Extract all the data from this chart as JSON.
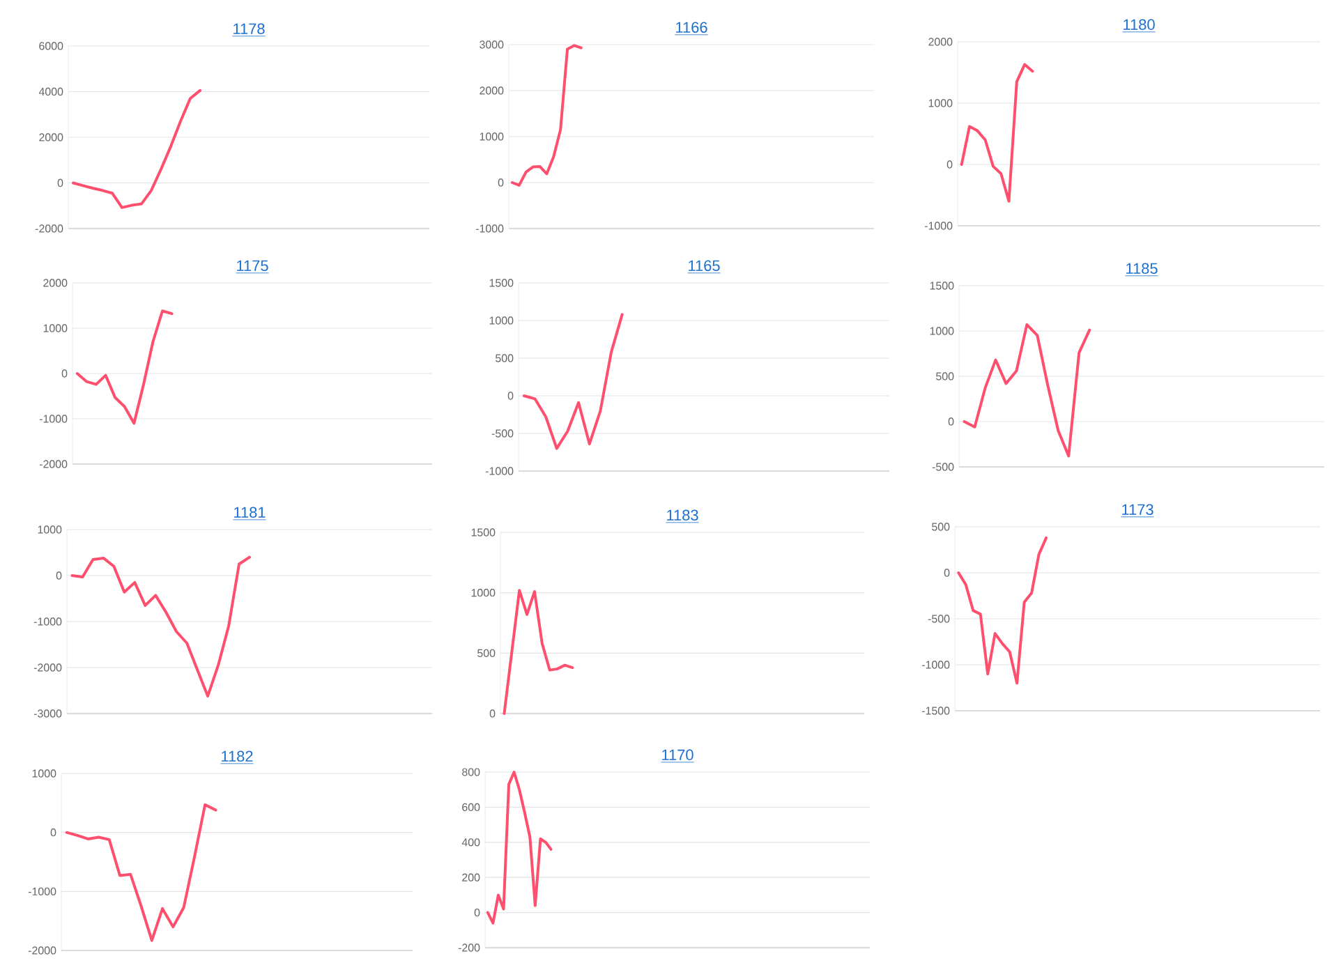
{
  "chart_data": [
    {
      "type": "line",
      "title": "1178",
      "color": "#ff4f6e",
      "grid": "y",
      "tick_labels": "y",
      "ylim": [
        -2000,
        6000
      ],
      "yticks": [
        -2000,
        0,
        2000,
        4000,
        6000
      ],
      "categories": [
        null,
        null,
        null,
        null,
        null,
        null,
        null,
        null,
        null,
        null,
        null,
        null,
        null,
        null,
        null,
        null,
        null,
        null,
        null,
        null,
        null,
        null,
        null,
        null,
        null,
        null,
        null,
        null,
        null,
        null,
        null,
        null,
        null,
        null,
        null,
        null,
        null
      ],
      "values": [
        0,
        -120,
        -230,
        -330,
        -450,
        -1080,
        -980,
        -920,
        -330,
        600,
        1600,
        2700,
        3700,
        4050,
        null,
        null,
        null,
        null,
        null,
        null,
        null,
        null,
        null,
        null,
        null,
        null,
        null,
        null,
        null,
        null,
        null,
        null,
        null,
        null,
        null,
        null,
        null
      ]
    },
    {
      "type": "line",
      "title": "1166",
      "color": "#ff4f6e",
      "grid": "y",
      "tick_labels": "y",
      "ylim": [
        -1000,
        3000
      ],
      "yticks": [
        -1000,
        0,
        1000,
        2000,
        3000
      ],
      "categories": [
        null,
        null,
        null,
        null,
        null,
        null,
        null,
        null,
        null,
        null,
        null,
        null,
        null,
        null,
        null,
        null,
        null,
        null,
        null,
        null,
        null,
        null,
        null,
        null,
        null,
        null,
        null,
        null,
        null,
        null,
        null,
        null,
        null,
        null,
        null,
        null,
        null,
        null,
        null,
        null,
        null,
        null,
        null,
        null,
        null,
        null,
        null,
        null,
        null,
        null,
        null,
        null,
        null
      ],
      "values": [
        0,
        -60,
        230,
        340,
        350,
        190,
        560,
        1150,
        2900,
        2980,
        2930,
        null,
        null,
        null,
        null,
        null,
        null,
        null,
        null,
        null,
        null,
        null,
        null,
        null,
        null,
        null,
        null,
        null,
        null,
        null,
        null,
        null,
        null,
        null,
        null,
        null,
        null,
        null,
        null,
        null,
        null,
        null,
        null,
        null,
        null,
        null,
        null,
        null,
        null,
        null,
        null,
        null,
        null
      ]
    },
    {
      "type": "line",
      "title": "1180",
      "color": "#ff4f6e",
      "grid": "y",
      "tick_labels": "y",
      "ylim": [
        -1000,
        2000
      ],
      "yticks": [
        -1000,
        0,
        1000,
        2000
      ],
      "categories": [
        null,
        null,
        null,
        null,
        null,
        null,
        null,
        null,
        null,
        null,
        null,
        null,
        null,
        null,
        null,
        null,
        null,
        null,
        null,
        null,
        null,
        null,
        null,
        null,
        null,
        null,
        null,
        null,
        null,
        null,
        null,
        null,
        null,
        null,
        null,
        null,
        null,
        null,
        null,
        null,
        null,
        null,
        null,
        null,
        null,
        null
      ],
      "values": [
        0,
        620,
        550,
        400,
        -30,
        -150,
        -600,
        1350,
        1630,
        1520,
        null,
        null,
        null,
        null,
        null,
        null,
        null,
        null,
        null,
        null,
        null,
        null,
        null,
        null,
        null,
        null,
        null,
        null,
        null,
        null,
        null,
        null,
        null,
        null,
        null,
        null,
        null,
        null,
        null,
        null,
        null,
        null,
        null,
        null,
        null,
        null
      ]
    },
    {
      "type": "line",
      "title": "1175",
      "color": "#ff4f6e",
      "grid": "y",
      "tick_labels": "y",
      "ylim": [
        -2000,
        2000
      ],
      "yticks": [
        -2000,
        -1000,
        0,
        1000,
        2000
      ],
      "categories": [
        null,
        null,
        null,
        null,
        null,
        null,
        null,
        null,
        null,
        null,
        null,
        null,
        null,
        null,
        null,
        null,
        null,
        null,
        null,
        null,
        null,
        null,
        null,
        null,
        null,
        null,
        null,
        null,
        null,
        null,
        null,
        null,
        null,
        null,
        null,
        null,
        null,
        null
      ],
      "values": [
        0,
        -180,
        -240,
        -40,
        -530,
        -730,
        -1100,
        -250,
        700,
        1380,
        1320,
        null,
        null,
        null,
        null,
        null,
        null,
        null,
        null,
        null,
        null,
        null,
        null,
        null,
        null,
        null,
        null,
        null,
        null,
        null,
        null,
        null,
        null,
        null,
        null,
        null,
        null,
        null
      ]
    },
    {
      "type": "line",
      "title": "1165",
      "color": "#ff4f6e",
      "grid": "y",
      "tick_labels": "y",
      "ylim": [
        -1000,
        1500
      ],
      "yticks": [
        -1000,
        -500,
        0,
        500,
        1000,
        1500
      ],
      "categories": [
        null,
        null,
        null,
        null,
        null,
        null,
        null,
        null,
        null,
        null,
        null,
        null,
        null,
        null,
        null,
        null,
        null,
        null,
        null,
        null,
        null,
        null,
        null,
        null,
        null,
        null,
        null,
        null,
        null,
        null,
        null,
        null,
        null,
        null
      ],
      "values": [
        0,
        -40,
        -280,
        -700,
        -470,
        -90,
        -640,
        -200,
        580,
        1080,
        null,
        null,
        null,
        null,
        null,
        null,
        null,
        null,
        null,
        null,
        null,
        null,
        null,
        null,
        null,
        null,
        null,
        null,
        null,
        null,
        null,
        null,
        null,
        null
      ]
    },
    {
      "type": "line",
      "title": "1185",
      "color": "#ff4f6e",
      "grid": "y",
      "tick_labels": "y",
      "ylim": [
        -500,
        1500
      ],
      "yticks": [
        -500,
        0,
        500,
        1000,
        1500
      ],
      "categories": [
        null,
        null,
        null,
        null,
        null,
        null,
        null,
        null,
        null,
        null,
        null,
        null,
        null,
        null,
        null,
        null,
        null,
        null,
        null,
        null,
        null,
        null,
        null,
        null,
        null,
        null,
        null,
        null,
        null,
        null,
        null,
        null,
        null,
        null,
        null
      ],
      "values": [
        0,
        -60,
        370,
        680,
        420,
        560,
        1070,
        950,
        400,
        -100,
        -380,
        760,
        1010,
        null,
        null,
        null,
        null,
        null,
        null,
        null,
        null,
        null,
        null,
        null,
        null,
        null,
        null,
        null,
        null,
        null,
        null,
        null,
        null,
        null,
        null
      ]
    },
    {
      "type": "line",
      "title": "1181",
      "color": "#ff4f6e",
      "grid": "y",
      "tick_labels": "y",
      "ylim": [
        -3000,
        1000
      ],
      "yticks": [
        -3000,
        -2000,
        -1000,
        0,
        1000
      ],
      "categories": [
        null,
        null,
        null,
        null,
        null,
        null,
        null,
        null,
        null,
        null,
        null,
        null,
        null,
        null,
        null,
        null,
        null,
        null,
        null,
        null,
        null,
        null,
        null,
        null,
        null,
        null,
        null,
        null,
        null,
        null,
        null,
        null,
        null,
        null,
        null
      ],
      "values": [
        0,
        -30,
        350,
        380,
        200,
        -360,
        -150,
        -650,
        -430,
        -800,
        -1220,
        -1470,
        -2050,
        -2620,
        -1950,
        -1100,
        250,
        400,
        null,
        null,
        null,
        null,
        null,
        null,
        null,
        null,
        null,
        null,
        null,
        null,
        null,
        null,
        null,
        null,
        null
      ]
    },
    {
      "type": "line",
      "title": "1183",
      "color": "#ff4f6e",
      "grid": "y",
      "tick_labels": "y",
      "ylim": [
        0,
        1500
      ],
      "yticks": [
        0,
        500,
        1000,
        1500
      ],
      "categories": [
        null,
        null,
        null,
        null,
        null,
        null,
        null,
        null,
        null,
        null,
        null,
        null,
        null,
        null,
        null,
        null,
        null,
        null,
        null,
        null,
        null,
        null,
        null,
        null,
        null,
        null,
        null,
        null,
        null,
        null,
        null,
        null,
        null,
        null,
        null,
        null,
        null,
        null,
        null,
        null,
        null,
        null,
        null,
        null,
        null,
        null,
        null,
        null
      ],
      "values": [
        0,
        510,
        1020,
        820,
        1010,
        580,
        360,
        370,
        400,
        380,
        null,
        null,
        null,
        null,
        null,
        null,
        null,
        null,
        null,
        null,
        null,
        null,
        null,
        null,
        null,
        null,
        null,
        null,
        null,
        null,
        null,
        null,
        null,
        null,
        null,
        null,
        null,
        null,
        null,
        null,
        null,
        null,
        null,
        null,
        null,
        null,
        null,
        null
      ]
    },
    {
      "type": "line",
      "title": "1173",
      "color": "#ff4f6e",
      "grid": "y",
      "tick_labels": "y",
      "ylim": [
        -1500,
        500
      ],
      "yticks": [
        -1500,
        -1000,
        -500,
        0,
        500
      ],
      "categories": [
        null,
        null,
        null,
        null,
        null,
        null,
        null,
        null,
        null,
        null,
        null,
        null,
        null,
        null,
        null,
        null,
        null,
        null,
        null,
        null,
        null,
        null,
        null,
        null,
        null,
        null,
        null,
        null,
        null,
        null,
        null,
        null,
        null,
        null,
        null,
        null,
        null,
        null,
        null,
        null,
        null,
        null,
        null,
        null,
        null,
        null,
        null,
        null,
        null,
        null
      ],
      "values": [
        0,
        -130,
        -410,
        -450,
        -1100,
        -660,
        -770,
        -860,
        -1200,
        -320,
        -220,
        200,
        380,
        null,
        null,
        null,
        null,
        null,
        null,
        null,
        null,
        null,
        null,
        null,
        null,
        null,
        null,
        null,
        null,
        null,
        null,
        null,
        null,
        null,
        null,
        null,
        null,
        null,
        null,
        null,
        null,
        null,
        null,
        null,
        null,
        null,
        null,
        null,
        null,
        null
      ]
    },
    {
      "type": "line",
      "title": "1182",
      "color": "#ff4f6e",
      "grid": "y",
      "tick_labels": "y",
      "ylim": [
        -2000,
        1000
      ],
      "yticks": [
        -2000,
        -1000,
        0,
        1000
      ],
      "categories": [
        null,
        null,
        null,
        null,
        null,
        null,
        null,
        null,
        null,
        null,
        null,
        null,
        null,
        null,
        null,
        null,
        null,
        null,
        null,
        null,
        null,
        null,
        null,
        null,
        null,
        null,
        null,
        null,
        null,
        null,
        null,
        null,
        null
      ],
      "values": [
        0,
        -50,
        -110,
        -80,
        -120,
        -730,
        -710,
        -1250,
        -1830,
        -1290,
        -1600,
        -1270,
        -420,
        470,
        380,
        null,
        null,
        null,
        null,
        null,
        null,
        null,
        null,
        null,
        null,
        null,
        null,
        null,
        null,
        null,
        null,
        null,
        null
      ]
    },
    {
      "type": "line",
      "title": "1170",
      "color": "#ff4f6e",
      "grid": "y",
      "tick_labels": "y",
      "ylim": [
        -200,
        800
      ],
      "yticks": [
        -200,
        0,
        200,
        400,
        600,
        800
      ],
      "categories": [
        null,
        null,
        null,
        null,
        null,
        null,
        null,
        null,
        null,
        null,
        null,
        null,
        null,
        null,
        null,
        null,
        null,
        null,
        null,
        null,
        null,
        null,
        null,
        null,
        null,
        null,
        null,
        null,
        null,
        null,
        null,
        null,
        null,
        null,
        null,
        null,
        null,
        null,
        null,
        null,
        null,
        null,
        null,
        null,
        null,
        null,
        null,
        null,
        null,
        null,
        null,
        null,
        null,
        null,
        null,
        null,
        null,
        null,
        null,
        null,
        null,
        null,
        null,
        null,
        null,
        null,
        null,
        null,
        null,
        null,
        null,
        null,
        null
      ],
      "values": [
        0,
        -60,
        100,
        20,
        730,
        800,
        700,
        570,
        430,
        40,
        420,
        400,
        360,
        null,
        null,
        null,
        null,
        null,
        null,
        null,
        null,
        null,
        null,
        null,
        null,
        null,
        null,
        null,
        null,
        null,
        null,
        null,
        null,
        null,
        null,
        null,
        null,
        null,
        null,
        null,
        null,
        null,
        null,
        null,
        null,
        null,
        null,
        null,
        null,
        null,
        null,
        null,
        null,
        null,
        null,
        null,
        null,
        null,
        null,
        null,
        null,
        null,
        null,
        null,
        null,
        null,
        null,
        null,
        null,
        null,
        null,
        null,
        null
      ]
    }
  ]
}
